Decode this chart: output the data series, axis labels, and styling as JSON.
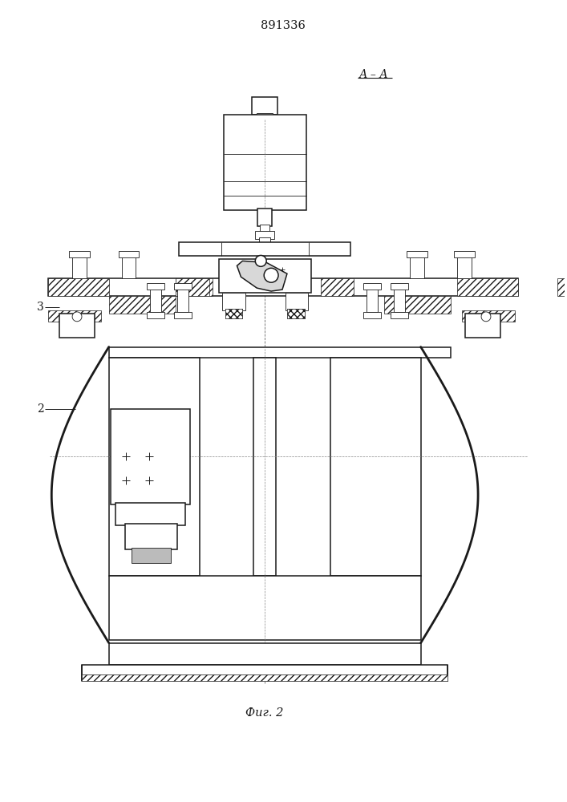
{
  "title": "891336",
  "subtitle": "А – А",
  "fig_label": "Фиг. 2",
  "label_2": "2",
  "label_3": "3",
  "bg_color": "#ffffff",
  "line_color": "#1a1a1a",
  "fig_width": 7.07,
  "fig_height": 10.0
}
